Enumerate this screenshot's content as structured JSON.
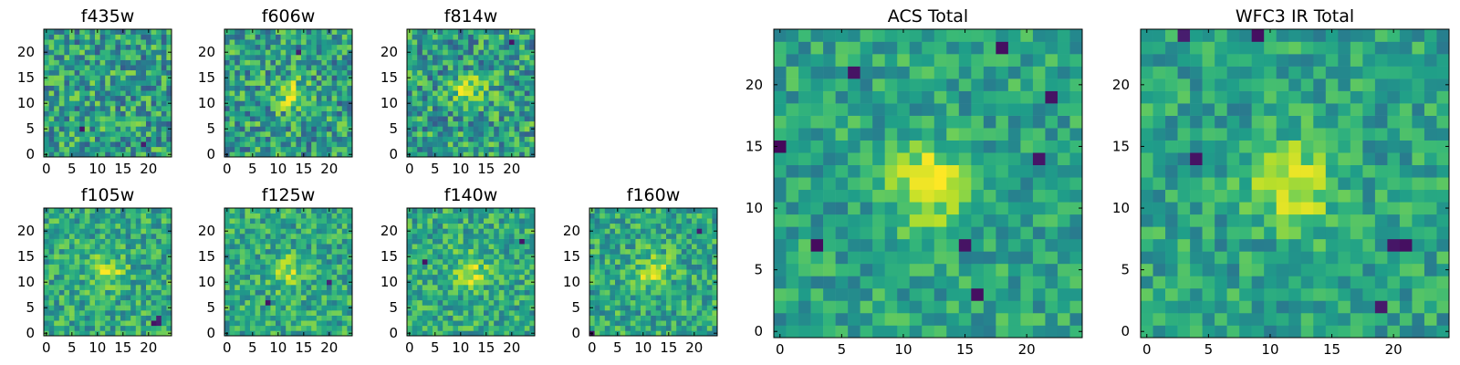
{
  "chart_data": [
    {
      "type": "heatmap",
      "title": "f435w",
      "grid_size": 25,
      "colormap": "viridis",
      "xticks": [
        "0",
        "5",
        "10",
        "15",
        "20"
      ],
      "yticks": [
        "0",
        "5",
        "10",
        "15",
        "20"
      ],
      "xlim": [
        0,
        25
      ],
      "ylim": [
        0,
        25
      ],
      "source_size": {
        "x": 12,
        "y": 12
      },
      "features": {
        "bright": [],
        "dark": [
          {
            "x": 7,
            "y": 5,
            "value": 0.06
          },
          {
            "x": 19,
            "y": 2,
            "value": 0.08
          }
        ]
      }
    },
    {
      "type": "heatmap",
      "title": "f606w",
      "grid_size": 25,
      "colormap": "viridis",
      "xticks": [
        "0",
        "5",
        "10",
        "15",
        "20"
      ],
      "yticks": [
        "0",
        "5",
        "10",
        "15",
        "20"
      ],
      "xlim": [
        0,
        25
      ],
      "ylim": [
        0,
        25
      ],
      "source_size": {
        "x": 12,
        "y": 12
      },
      "features": {
        "bright": [
          {
            "x": 11,
            "y": 13,
            "value": 0.9
          },
          {
            "x": 12,
            "y": 12,
            "value": 0.85
          }
        ],
        "dark": [
          {
            "x": 14,
            "y": 20,
            "value": 0.08
          }
        ]
      }
    },
    {
      "type": "heatmap",
      "title": "f814w",
      "grid_size": 25,
      "colormap": "viridis",
      "xticks": [
        "0",
        "5",
        "10",
        "15",
        "20"
      ],
      "yticks": [
        "0",
        "5",
        "10",
        "15",
        "20"
      ],
      "xlim": [
        0,
        25
      ],
      "ylim": [
        0,
        25
      ],
      "source_size": {
        "x": 12,
        "y": 12
      },
      "features": {
        "bright": [
          {
            "x": 11,
            "y": 12,
            "value": 0.95
          },
          {
            "x": 12,
            "y": 12,
            "value": 0.95
          },
          {
            "x": 11,
            "y": 13,
            "value": 0.9
          },
          {
            "x": 12,
            "y": 13,
            "value": 0.9
          }
        ],
        "dark": [
          {
            "x": 20,
            "y": 22,
            "value": 0.06
          }
        ]
      }
    },
    {
      "type": "heatmap",
      "title": "f105w",
      "grid_size": 25,
      "colormap": "viridis",
      "xticks": [
        "0",
        "5",
        "10",
        "15",
        "20"
      ],
      "yticks": [
        "0",
        "5",
        "10",
        "15",
        "20"
      ],
      "xlim": [
        0,
        25
      ],
      "ylim": [
        0,
        25
      ],
      "source_size": {
        "x": 12,
        "y": 12
      },
      "features": {
        "bright": [
          {
            "x": 12,
            "y": 13,
            "value": 0.9
          },
          {
            "x": 13,
            "y": 13,
            "value": 0.9
          }
        ],
        "dark": [
          {
            "x": 21,
            "y": 2,
            "value": 0.05
          },
          {
            "x": 22,
            "y": 2,
            "value": 0.08
          },
          {
            "x": 22,
            "y": 3,
            "value": 0.1
          }
        ]
      }
    },
    {
      "type": "heatmap",
      "title": "f125w",
      "grid_size": 25,
      "colormap": "viridis",
      "xticks": [
        "0",
        "5",
        "10",
        "15",
        "20"
      ],
      "yticks": [
        "0",
        "5",
        "10",
        "15",
        "20"
      ],
      "xlim": [
        0,
        25
      ],
      "ylim": [
        0,
        25
      ],
      "source_size": {
        "x": 12,
        "y": 12
      },
      "features": {
        "bright": [
          {
            "x": 11,
            "y": 12,
            "value": 0.8
          }
        ],
        "dark": [
          {
            "x": 8,
            "y": 6,
            "value": 0.05
          },
          {
            "x": 20,
            "y": 10,
            "value": 0.1
          }
        ]
      }
    },
    {
      "type": "heatmap",
      "title": "f140w",
      "grid_size": 25,
      "colormap": "viridis",
      "xticks": [
        "0",
        "5",
        "10",
        "15",
        "20"
      ],
      "yticks": [
        "0",
        "5",
        "10",
        "15",
        "20"
      ],
      "xlim": [
        0,
        25
      ],
      "ylim": [
        0,
        25
      ],
      "source_size": {
        "x": 12,
        "y": 12
      },
      "features": {
        "bright": [
          {
            "x": 9,
            "y": 12,
            "value": 0.9
          },
          {
            "x": 10,
            "y": 12,
            "value": 0.9
          }
        ],
        "dark": [
          {
            "x": 3,
            "y": 14,
            "value": 0.05
          },
          {
            "x": 22,
            "y": 18,
            "value": 0.06
          }
        ]
      }
    },
    {
      "type": "heatmap",
      "title": "f160w",
      "grid_size": 25,
      "colormap": "viridis",
      "xticks": [
        "0",
        "5",
        "10",
        "15",
        "20"
      ],
      "yticks": [
        "0",
        "5",
        "10",
        "15",
        "20"
      ],
      "xlim": [
        0,
        25
      ],
      "ylim": [
        0,
        25
      ],
      "source_size": {
        "x": 12,
        "y": 12
      },
      "features": {
        "bright": [
          {
            "x": 12,
            "y": 13,
            "value": 0.95
          },
          {
            "x": 13,
            "y": 12,
            "value": 0.9
          }
        ],
        "dark": [
          {
            "x": 0,
            "y": 0,
            "value": 0.05
          },
          {
            "x": 21,
            "y": 20,
            "value": 0.08
          }
        ]
      }
    },
    {
      "type": "heatmap",
      "title": "ACS Total",
      "grid_size": 25,
      "colormap": "viridis",
      "xticks": [
        "0",
        "5",
        "10",
        "15",
        "20"
      ],
      "yticks": [
        "0",
        "5",
        "10",
        "15",
        "20"
      ],
      "xlim": [
        0,
        25
      ],
      "ylim": [
        0,
        25
      ],
      "source_size": {
        "x": 12,
        "y": 12
      },
      "features": {
        "bright": [
          {
            "x": 11,
            "y": 12,
            "value": 0.98
          },
          {
            "x": 12,
            "y": 12,
            "value": 0.98
          },
          {
            "x": 11,
            "y": 13,
            "value": 0.95
          },
          {
            "x": 12,
            "y": 13,
            "value": 0.95
          },
          {
            "x": 11,
            "y": 11,
            "value": 0.92
          }
        ],
        "dark": [
          {
            "x": 0,
            "y": 15,
            "value": 0.02
          },
          {
            "x": 6,
            "y": 21,
            "value": 0.05
          },
          {
            "x": 18,
            "y": 23,
            "value": 0.04
          },
          {
            "x": 3,
            "y": 7,
            "value": 0.03
          },
          {
            "x": 15,
            "y": 7,
            "value": 0.05
          },
          {
            "x": 16,
            "y": 3,
            "value": 0.04
          },
          {
            "x": 22,
            "y": 19,
            "value": 0.05
          },
          {
            "x": 21,
            "y": 14,
            "value": 0.06
          }
        ]
      }
    },
    {
      "type": "heatmap",
      "title": "WFC3 IR Total",
      "grid_size": 25,
      "colormap": "viridis",
      "xticks": [
        "0",
        "5",
        "10",
        "15",
        "20"
      ],
      "yticks": [
        "0",
        "5",
        "10",
        "15",
        "20"
      ],
      "xlim": [
        0,
        25
      ],
      "ylim": [
        0,
        25
      ],
      "source_size": {
        "x": 12,
        "y": 12
      },
      "features": {
        "bright": [
          {
            "x": 12,
            "y": 13,
            "value": 0.97
          },
          {
            "x": 13,
            "y": 13,
            "value": 0.97
          },
          {
            "x": 12,
            "y": 14,
            "value": 0.93
          },
          {
            "x": 11,
            "y": 12,
            "value": 0.9
          }
        ],
        "dark": [
          {
            "x": 9,
            "y": 24,
            "value": 0.04
          },
          {
            "x": 4,
            "y": 14,
            "value": 0.05
          },
          {
            "x": 21,
            "y": 7,
            "value": 0.04
          },
          {
            "x": 20,
            "y": 7,
            "value": 0.06
          },
          {
            "x": 19,
            "y": 2,
            "value": 0.07
          },
          {
            "x": 3,
            "y": 24,
            "value": 0.08
          }
        ]
      }
    }
  ]
}
